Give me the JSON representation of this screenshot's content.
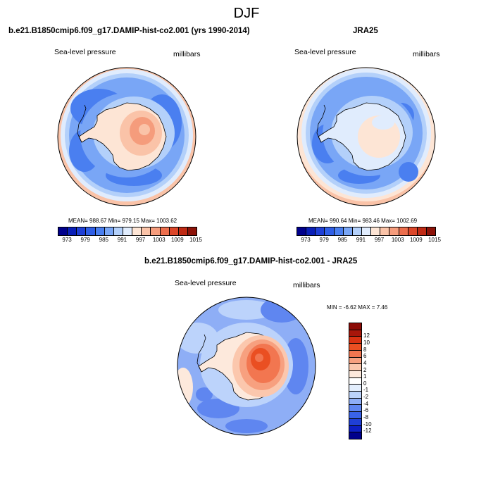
{
  "page_title": "DJF",
  "panels": [
    {
      "header": "b.e21.B1850cmip6.f09_g17.DAMIP-hist-co2.001 (yrs 1990-2014)",
      "variable": "Sea-level pressure",
      "units": "millibars",
      "stats": "MEAN= 988.67   Min= 979.15   Max= 1003.62"
    },
    {
      "header": "JRA25",
      "variable": "Sea-level pressure",
      "units": "millibars",
      "stats": "MEAN= 990.64   Min= 983.46   Max= 1002.69"
    },
    {
      "header": "b.e21.B1850cmip6.f09_g17.DAMIP-hist-co2.001 - JRA25",
      "variable": "Sea-level pressure",
      "units": "millibars",
      "stats": "MIN =  -6.62 MAX =   7.46"
    }
  ],
  "colorbar_abs": {
    "colors": [
      "#00008b",
      "#0a1fb8",
      "#1f3fd6",
      "#2f5ee6",
      "#4a7ff0",
      "#79a6f6",
      "#b3d0fa",
      "#e0ecfd",
      "#fde5d5",
      "#fac3a8",
      "#f59c7c",
      "#ec6e4d",
      "#db4629",
      "#bf2a14",
      "#8c1208"
    ],
    "tick_labels": [
      "973",
      "979",
      "985",
      "991",
      "997",
      "1003",
      "1009",
      "1015"
    ]
  },
  "colorbar_diff": {
    "colors_bottom_to_top": [
      "#00008b",
      "#0d1fc4",
      "#1f3fd6",
      "#3a63e8",
      "#5f86f0",
      "#8eaef6",
      "#bcd3fb",
      "#e3eefd",
      "#ffffff",
      "#fde9dc",
      "#fbc7ad",
      "#f7a07f",
      "#f27650",
      "#ea4f22",
      "#d93212",
      "#a8160a",
      "#8b0a05"
    ],
    "tick_labels_bottom_to_top": [
      "-12",
      "-10",
      "-8",
      "-6",
      "-4",
      "-2",
      "-1",
      "0",
      "1",
      "2",
      "4",
      "6",
      "8",
      "10",
      "12"
    ]
  },
  "chart_data": [
    {
      "type": "heatmap",
      "title": "b.e21.B1850cmip6.f09_g17.DAMIP-hist-co2.001 (yrs 1990-2014)",
      "variable": "Sea-level pressure",
      "units": "millibars",
      "projection": "south polar stereographic",
      "mean": 988.67,
      "min": 979.15,
      "max": 1003.62,
      "contour_levels": [
        973,
        976,
        979,
        982,
        985,
        988,
        991,
        994,
        997,
        1000,
        1003,
        1006,
        1009,
        1012,
        1015
      ]
    },
    {
      "type": "heatmap",
      "title": "JRA25",
      "variable": "Sea-level pressure",
      "units": "millibars",
      "projection": "south polar stereographic",
      "mean": 990.64,
      "min": 983.46,
      "max": 1002.69,
      "contour_levels": [
        973,
        976,
        979,
        982,
        985,
        988,
        991,
        994,
        997,
        1000,
        1003,
        1006,
        1009,
        1012,
        1015
      ]
    },
    {
      "type": "heatmap",
      "title": "b.e21.B1850cmip6.f09_g17.DAMIP-hist-co2.001 - JRA25",
      "variable": "Sea-level pressure",
      "units": "millibars",
      "projection": "south polar stereographic",
      "min": -6.62,
      "max": 7.46,
      "contour_levels": [
        -12,
        -10,
        -8,
        -6,
        -4,
        -2,
        -1,
        0,
        1,
        2,
        4,
        6,
        8,
        10,
        12
      ]
    }
  ]
}
